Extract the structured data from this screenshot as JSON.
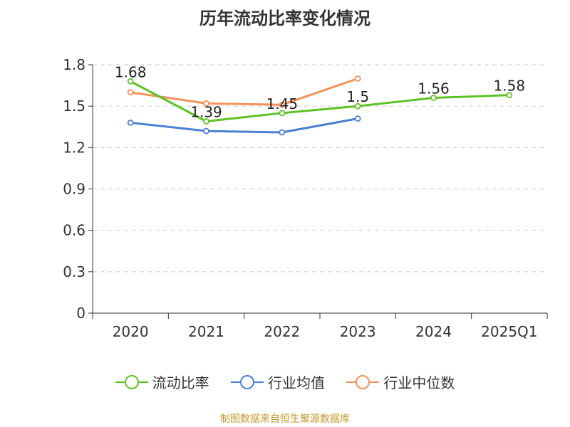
{
  "title": "历年流动比率变化情况",
  "source": "制图数据来自恒生聚源数据库",
  "legend": [
    {
      "name": "流动比率",
      "color": "#5ec227"
    },
    {
      "name": "行业均值",
      "color": "#4a7fd4"
    },
    {
      "name": "行业中位数",
      "color": "#f5925a"
    }
  ],
  "chart_data": {
    "type": "line",
    "categories": [
      "2020",
      "2021",
      "2022",
      "2023",
      "2024",
      "2025Q1"
    ],
    "y_ticks": [
      "0",
      "0.3",
      "0.6",
      "0.9",
      "1.2",
      "1.5",
      "1.8"
    ],
    "ylim": [
      0,
      1.8
    ],
    "grid": true,
    "legend_position": "bottom",
    "series": [
      {
        "name": "流动比率",
        "color": "#5ec227",
        "values": [
          1.68,
          1.39,
          1.45,
          1.5,
          1.56,
          1.58
        ],
        "labels": [
          "1.68",
          "1.39",
          "1.45",
          "1.5",
          "1.56",
          "1.58"
        ]
      },
      {
        "name": "行业均值",
        "color": "#4a7fd4",
        "values": [
          1.38,
          1.32,
          1.31,
          1.41,
          null,
          null
        ]
      },
      {
        "name": "行业中位数",
        "color": "#f5925a",
        "values": [
          1.6,
          1.52,
          1.51,
          1.7,
          null,
          null
        ]
      }
    ]
  }
}
